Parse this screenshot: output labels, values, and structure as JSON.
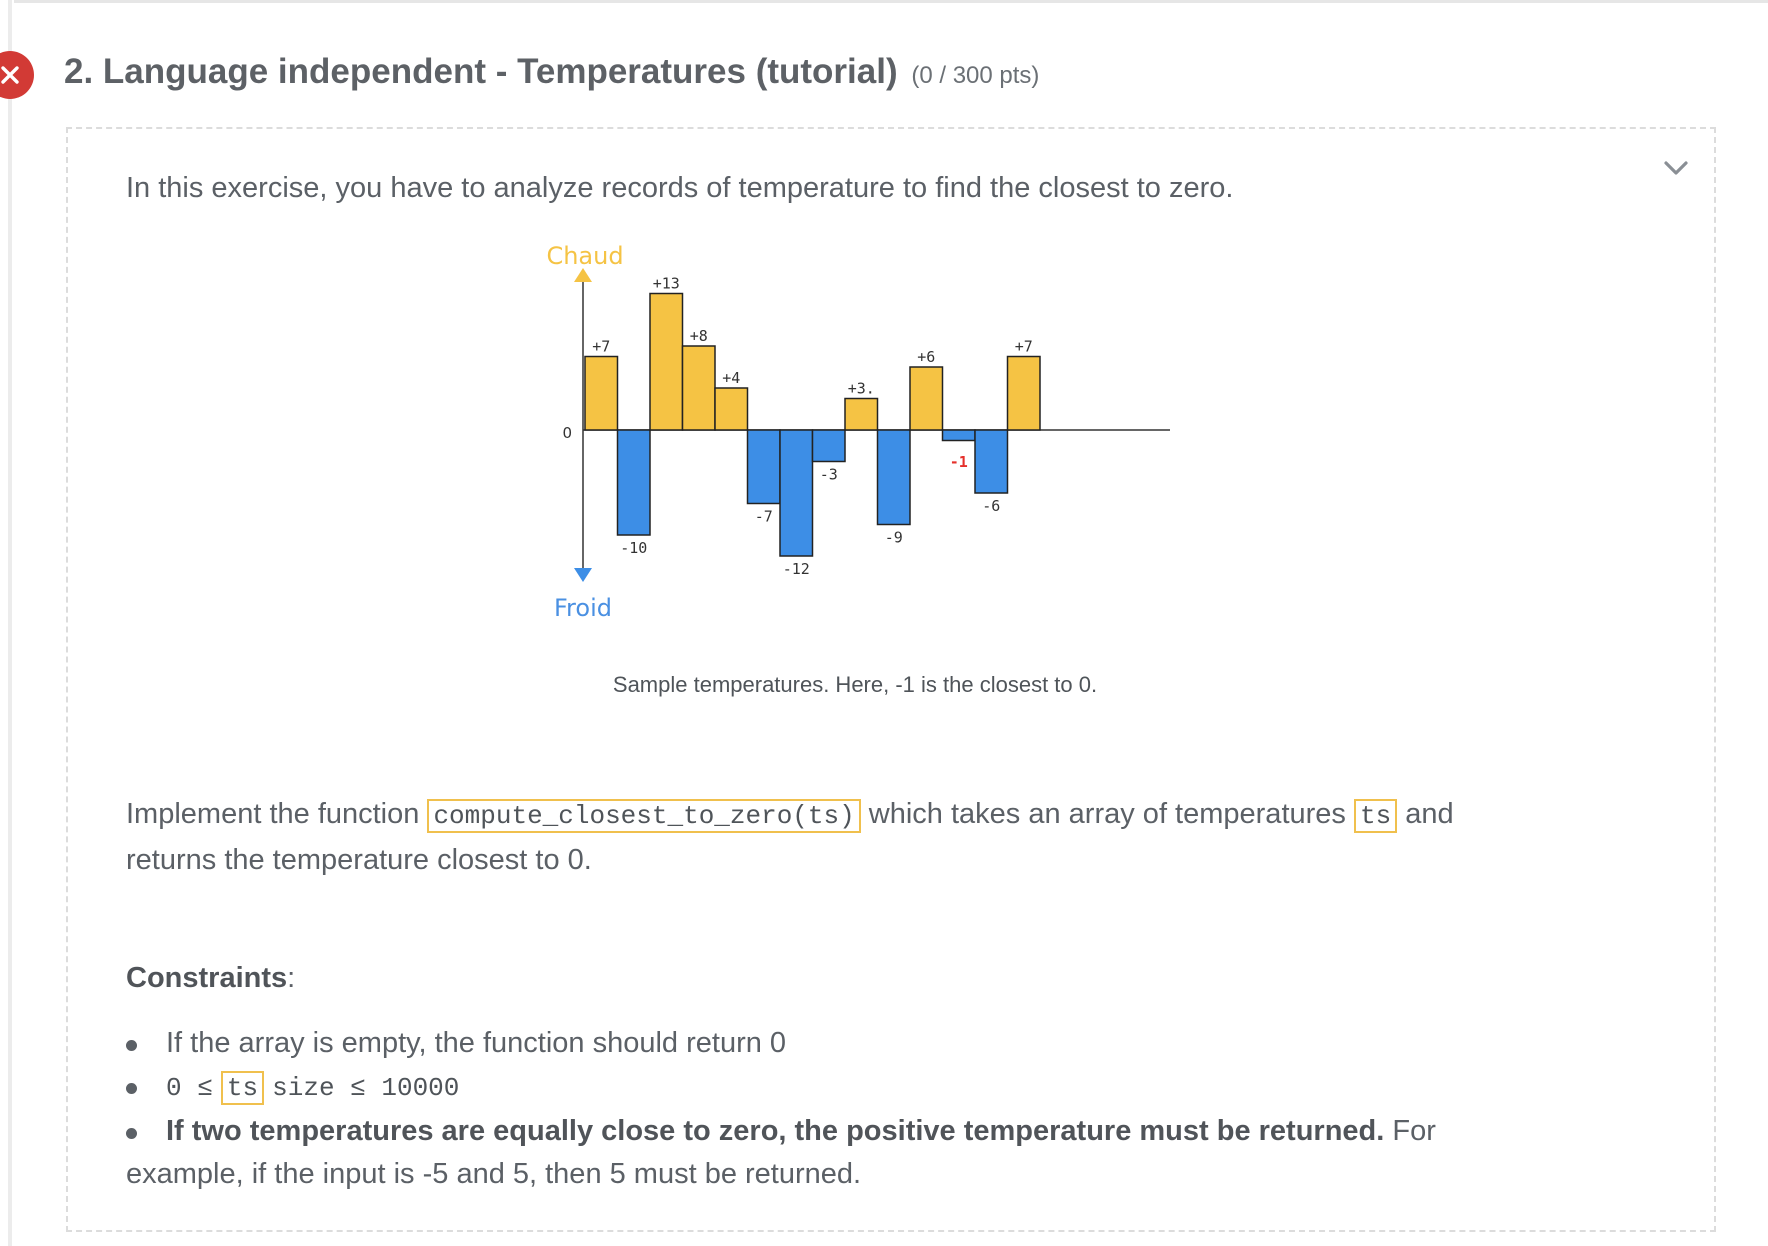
{
  "question": {
    "status_icon": "close-x-icon",
    "title": "2. Language independent - Temperatures (tutorial)",
    "points": "(0 / 300 pts)"
  },
  "panel": {
    "collapse_icon": "chevron-down-icon",
    "intro": "In this exercise, you have to analyze records of temperature to find the closest to zero.",
    "caption": "Sample temperatures. Here, -1 is the closest to 0.",
    "task": {
      "prefix": "Implement the function",
      "function_name": "compute_closest_to_zero(ts)",
      "middle": "which takes an array of temperatures",
      "param": "ts",
      "suffix": "and returns the temperature closest to 0."
    },
    "constraints": {
      "title": "Constraints",
      "colon": ":",
      "items": [
        "If the array is empty, the function should return 0",
        {
          "prefix": "0 ≤",
          "code": "ts",
          "suffix": "size ≤ 10000"
        },
        {
          "bold": "If two temperatures are equally close to zero, the positive temperature must be returned.",
          "rest": " For example, if the input is -5 and 5, then 5 must be returned."
        }
      ]
    }
  },
  "figure": {
    "top_label": "Chaud",
    "bottom_label": "Froid",
    "zero_label": "0",
    "values": [
      7,
      -10,
      13,
      8,
      4,
      -7,
      -12,
      -3,
      3,
      -9,
      6,
      -1,
      -6,
      7
    ],
    "value_labels": [
      "+7",
      "-10",
      "+13",
      "+8",
      "+4",
      "-7",
      "-12",
      "-3",
      "+3.",
      "-9",
      "+6",
      "-1",
      "-6",
      "+7"
    ],
    "highlight_index": 11,
    "colors": {
      "positive": "#f5c344",
      "negative": "#3d8ee6",
      "highlight_label": "#e5302b",
      "top_label": "#f5c344",
      "bottom_label": "#4a90e2"
    }
  }
}
